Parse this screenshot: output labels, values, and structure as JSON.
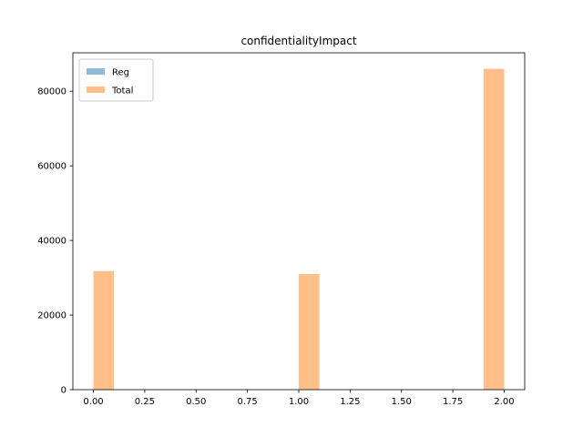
{
  "chart_data": {
    "type": "bar",
    "title": "confidentialityImpact",
    "xlabel": "",
    "ylabel": "",
    "xlim": [
      -0.1,
      2.1
    ],
    "ylim": [
      0,
      90300
    ],
    "xticks": [
      0.0,
      0.25,
      0.5,
      0.75,
      1.0,
      1.25,
      1.5,
      1.75,
      2.0
    ],
    "xtick_labels": [
      "0.00",
      "0.25",
      "0.50",
      "0.75",
      "1.00",
      "1.25",
      "1.50",
      "1.75",
      "2.00"
    ],
    "yticks": [
      0,
      20000,
      40000,
      60000,
      80000
    ],
    "ytick_labels": [
      "0",
      "20000",
      "40000",
      "60000",
      "80000"
    ],
    "bin_width": 0.1,
    "series": [
      {
        "name": "Reg",
        "color": "#1f77b4",
        "alpha": 0.5,
        "bins": []
      },
      {
        "name": "Total",
        "color": "#ff7f0e",
        "alpha": 0.5,
        "bins": [
          {
            "x0": 0.0,
            "x1": 0.1,
            "value": 31800
          },
          {
            "x0": 1.0,
            "x1": 1.1,
            "value": 31000
          },
          {
            "x0": 1.9,
            "x1": 2.0,
            "value": 86000
          }
        ]
      }
    ],
    "legend": {
      "position": "upper left"
    },
    "grid": false
  }
}
